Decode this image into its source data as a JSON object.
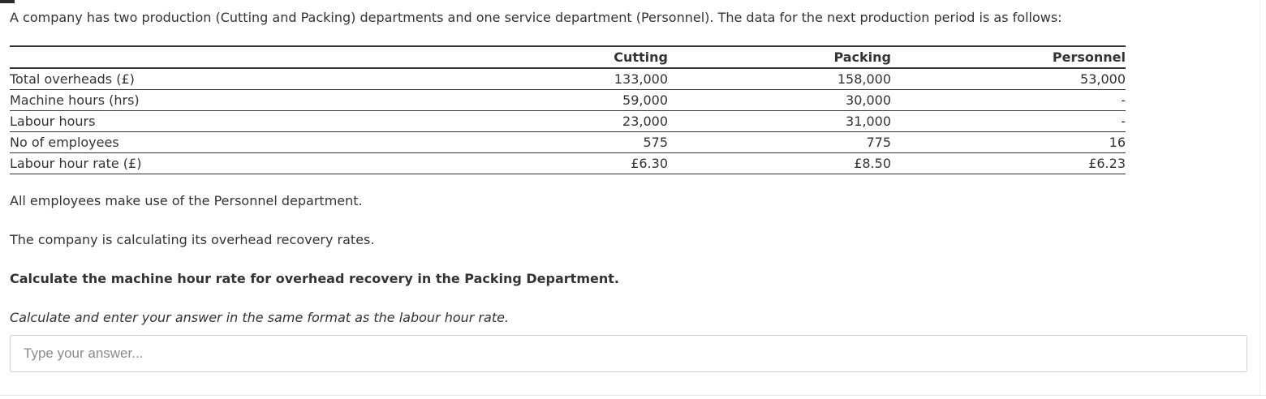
{
  "question": {
    "intro": "A company has two production (Cutting and Packing) departments and one service department (Personnel). The data for the next production period is as follows:",
    "table": {
      "headers": [
        "",
        "Cutting",
        "Packing",
        "Personnel"
      ],
      "rows": [
        {
          "label": "Total overheads (£)",
          "cutting": "133,000",
          "packing": "158,000",
          "personnel": "53,000"
        },
        {
          "label": "Machine hours (hrs)",
          "cutting": "59,000",
          "packing": "30,000",
          "personnel": "-"
        },
        {
          "label": "Labour hours",
          "cutting": "23,000",
          "packing": "31,000",
          "personnel": "-"
        },
        {
          "label": "No of employees",
          "cutting": "575",
          "packing": "775",
          "personnel": "16"
        },
        {
          "label": "Labour hour rate (£)",
          "cutting": "£6.30",
          "packing": "£8.50",
          "personnel": "£6.23"
        }
      ]
    },
    "paragraph_1": "All employees make use of the Personnel department.",
    "paragraph_2": "The company is calculating its overhead recovery rates.",
    "task": "Calculate the machine hour rate for overhead recovery in the Packing Department.",
    "instruction": "Calculate and enter your answer in the same format as the labour hour rate."
  },
  "answer": {
    "placeholder": "Type your answer...",
    "value": ""
  }
}
